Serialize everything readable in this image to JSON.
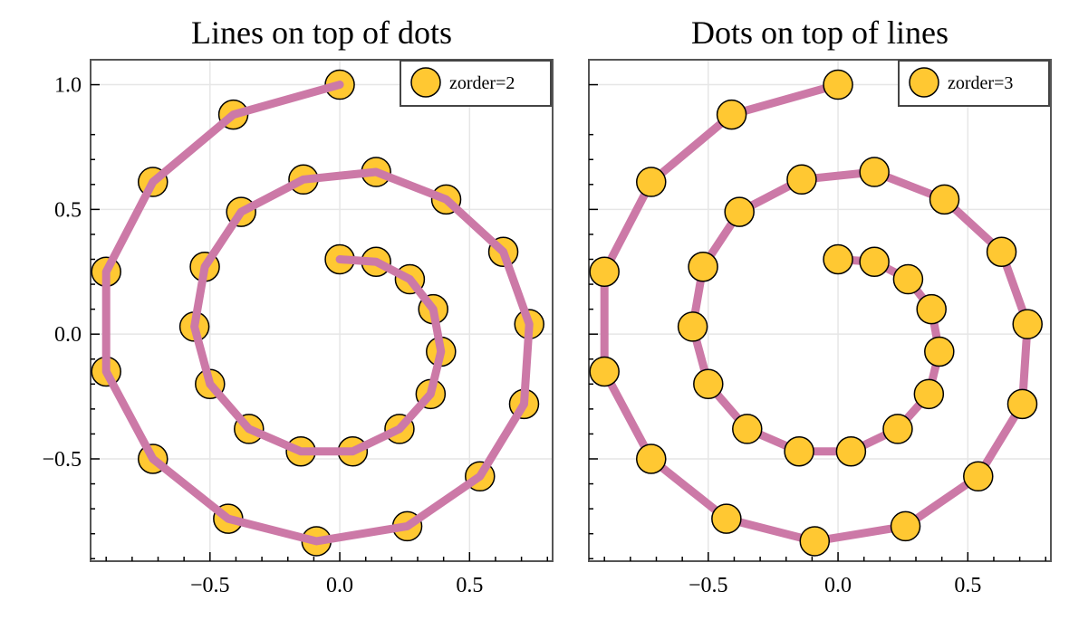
{
  "colors": {
    "line": "#cc79a7",
    "marker_fill": "#ffc832",
    "marker_edge": "#000000",
    "grid": "#e6e6e6",
    "spine": "#555555"
  },
  "chart_data": [
    {
      "type": "line",
      "title": "Lines on top of dots",
      "xlim": [
        -0.96,
        0.82
      ],
      "ylim": [
        -0.91,
        1.1
      ],
      "xticks": [
        -0.5,
        0.0,
        0.5
      ],
      "xtick_labels": [
        "−0.5",
        "0.0",
        "0.5"
      ],
      "yticks": [
        1.0,
        0.5,
        0.0,
        -0.5
      ],
      "ytick_labels": [
        "1.0",
        "0.5",
        "0.0",
        "−0.5"
      ],
      "grid": true,
      "legend": {
        "placement": "top-right",
        "label": "zorder=2",
        "marker": "circle"
      },
      "draw_order": "dots-below-line",
      "series": [
        {
          "x": [
            0.0,
            0.14,
            0.27,
            0.36,
            0.39,
            0.35,
            0.23,
            0.05,
            -0.15,
            -0.35,
            -0.5,
            -0.56,
            -0.52,
            -0.38,
            -0.14,
            0.14,
            0.41,
            0.63,
            0.73,
            0.71,
            0.54,
            0.26,
            -0.09,
            -0.43,
            -0.72,
            -0.9,
            -0.9,
            -0.72,
            -0.41,
            0.0
          ],
          "y": [
            0.3,
            0.29,
            0.22,
            0.1,
            -0.07,
            -0.24,
            -0.38,
            -0.47,
            -0.47,
            -0.38,
            -0.2,
            0.03,
            0.27,
            0.49,
            0.62,
            0.65,
            0.54,
            0.33,
            0.04,
            -0.28,
            -0.57,
            -0.77,
            -0.83,
            -0.74,
            -0.5,
            -0.15,
            0.25,
            0.61,
            0.88,
            1.0
          ]
        }
      ]
    },
    {
      "type": "line",
      "title": "Dots on top of lines",
      "xlim": [
        -0.96,
        0.82
      ],
      "ylim": [
        -0.91,
        1.1
      ],
      "xticks": [
        -0.5,
        0.0,
        0.5
      ],
      "xtick_labels": [
        "−0.5",
        "0.0",
        "0.5"
      ],
      "yticks": [
        1.0,
        0.5,
        0.0,
        -0.5
      ],
      "ytick_labels": [
        "",
        "",
        "",
        ""
      ],
      "grid": true,
      "legend": {
        "placement": "top-right",
        "label": "zorder=3",
        "marker": "circle"
      },
      "draw_order": "dots-above-line",
      "series": [
        {
          "x": [
            0.0,
            0.14,
            0.27,
            0.36,
            0.39,
            0.35,
            0.23,
            0.05,
            -0.15,
            -0.35,
            -0.5,
            -0.56,
            -0.52,
            -0.38,
            -0.14,
            0.14,
            0.41,
            0.63,
            0.73,
            0.71,
            0.54,
            0.26,
            -0.09,
            -0.43,
            -0.72,
            -0.9,
            -0.9,
            -0.72,
            -0.41,
            0.0
          ],
          "y": [
            0.3,
            0.29,
            0.22,
            0.1,
            -0.07,
            -0.24,
            -0.38,
            -0.47,
            -0.47,
            -0.38,
            -0.2,
            0.03,
            0.27,
            0.49,
            0.62,
            0.65,
            0.54,
            0.33,
            0.04,
            -0.28,
            -0.57,
            -0.77,
            -0.83,
            -0.74,
            -0.5,
            -0.15,
            0.25,
            0.61,
            0.88,
            1.0
          ]
        }
      ]
    }
  ]
}
